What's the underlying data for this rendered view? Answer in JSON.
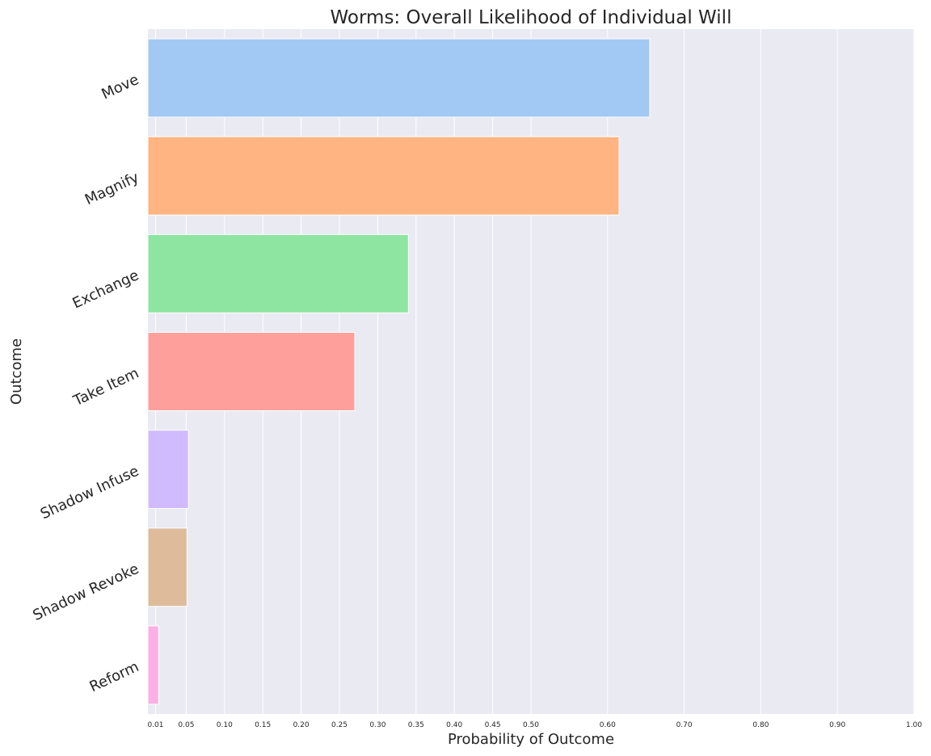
{
  "chart_data": {
    "type": "bar",
    "orientation": "horizontal",
    "title": "Worms: Overall Likelihood of Individual Will",
    "xlabel": "Probability of Outcome",
    "ylabel": "Outcome",
    "categories": [
      "Move",
      "Magnify",
      "Exchange",
      "Take Item",
      "Shadow Infuse",
      "Shadow Revoke",
      "Reform"
    ],
    "values": [
      0.655,
      0.615,
      0.34,
      0.27,
      0.053,
      0.051,
      0.014
    ],
    "colors": [
      "#a1c9f4",
      "#ffb482",
      "#8de5a1",
      "#ff9f9b",
      "#d0bbff",
      "#debb9b",
      "#fab0e4"
    ],
    "xlim": [
      0,
      1.0
    ],
    "xticks": [
      0.01,
      0.05,
      0.1,
      0.15,
      0.2,
      0.25,
      0.3,
      0.35,
      0.4,
      0.45,
      0.5,
      0.6,
      0.7,
      0.8,
      0.9,
      1.0
    ],
    "xtick_labels": [
      "0.01",
      "0.05",
      "0.10",
      "0.15",
      "0.20",
      "0.25",
      "0.30",
      "0.35",
      "0.40",
      "0.45",
      "0.50",
      "0.60",
      "0.70",
      "0.80",
      "0.90",
      "1.00"
    ],
    "grid": true,
    "background": "#eaeaf2",
    "grid_color": "#ffffff"
  }
}
